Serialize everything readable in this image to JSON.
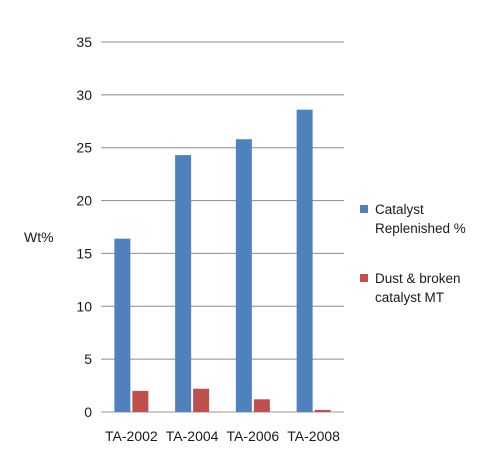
{
  "chart_data": {
    "type": "bar",
    "title": "",
    "xlabel": "",
    "ylabel": "Wt%",
    "ylim": [
      0,
      35
    ],
    "yticks": [
      0,
      5,
      10,
      15,
      20,
      25,
      30,
      35
    ],
    "grid": true,
    "legend_position": "right",
    "categories": [
      "TA-2002",
      "TA-2004",
      "TA-2006",
      "TA-2008"
    ],
    "series": [
      {
        "name": "Catalyst Replenished %",
        "color": "#4f81bd",
        "values": [
          16.4,
          24.3,
          25.8,
          28.6
        ]
      },
      {
        "name": "Dust & broken catalyst MT",
        "color": "#c0504d",
        "values": [
          2.0,
          2.2,
          1.2,
          0.2
        ]
      }
    ]
  }
}
